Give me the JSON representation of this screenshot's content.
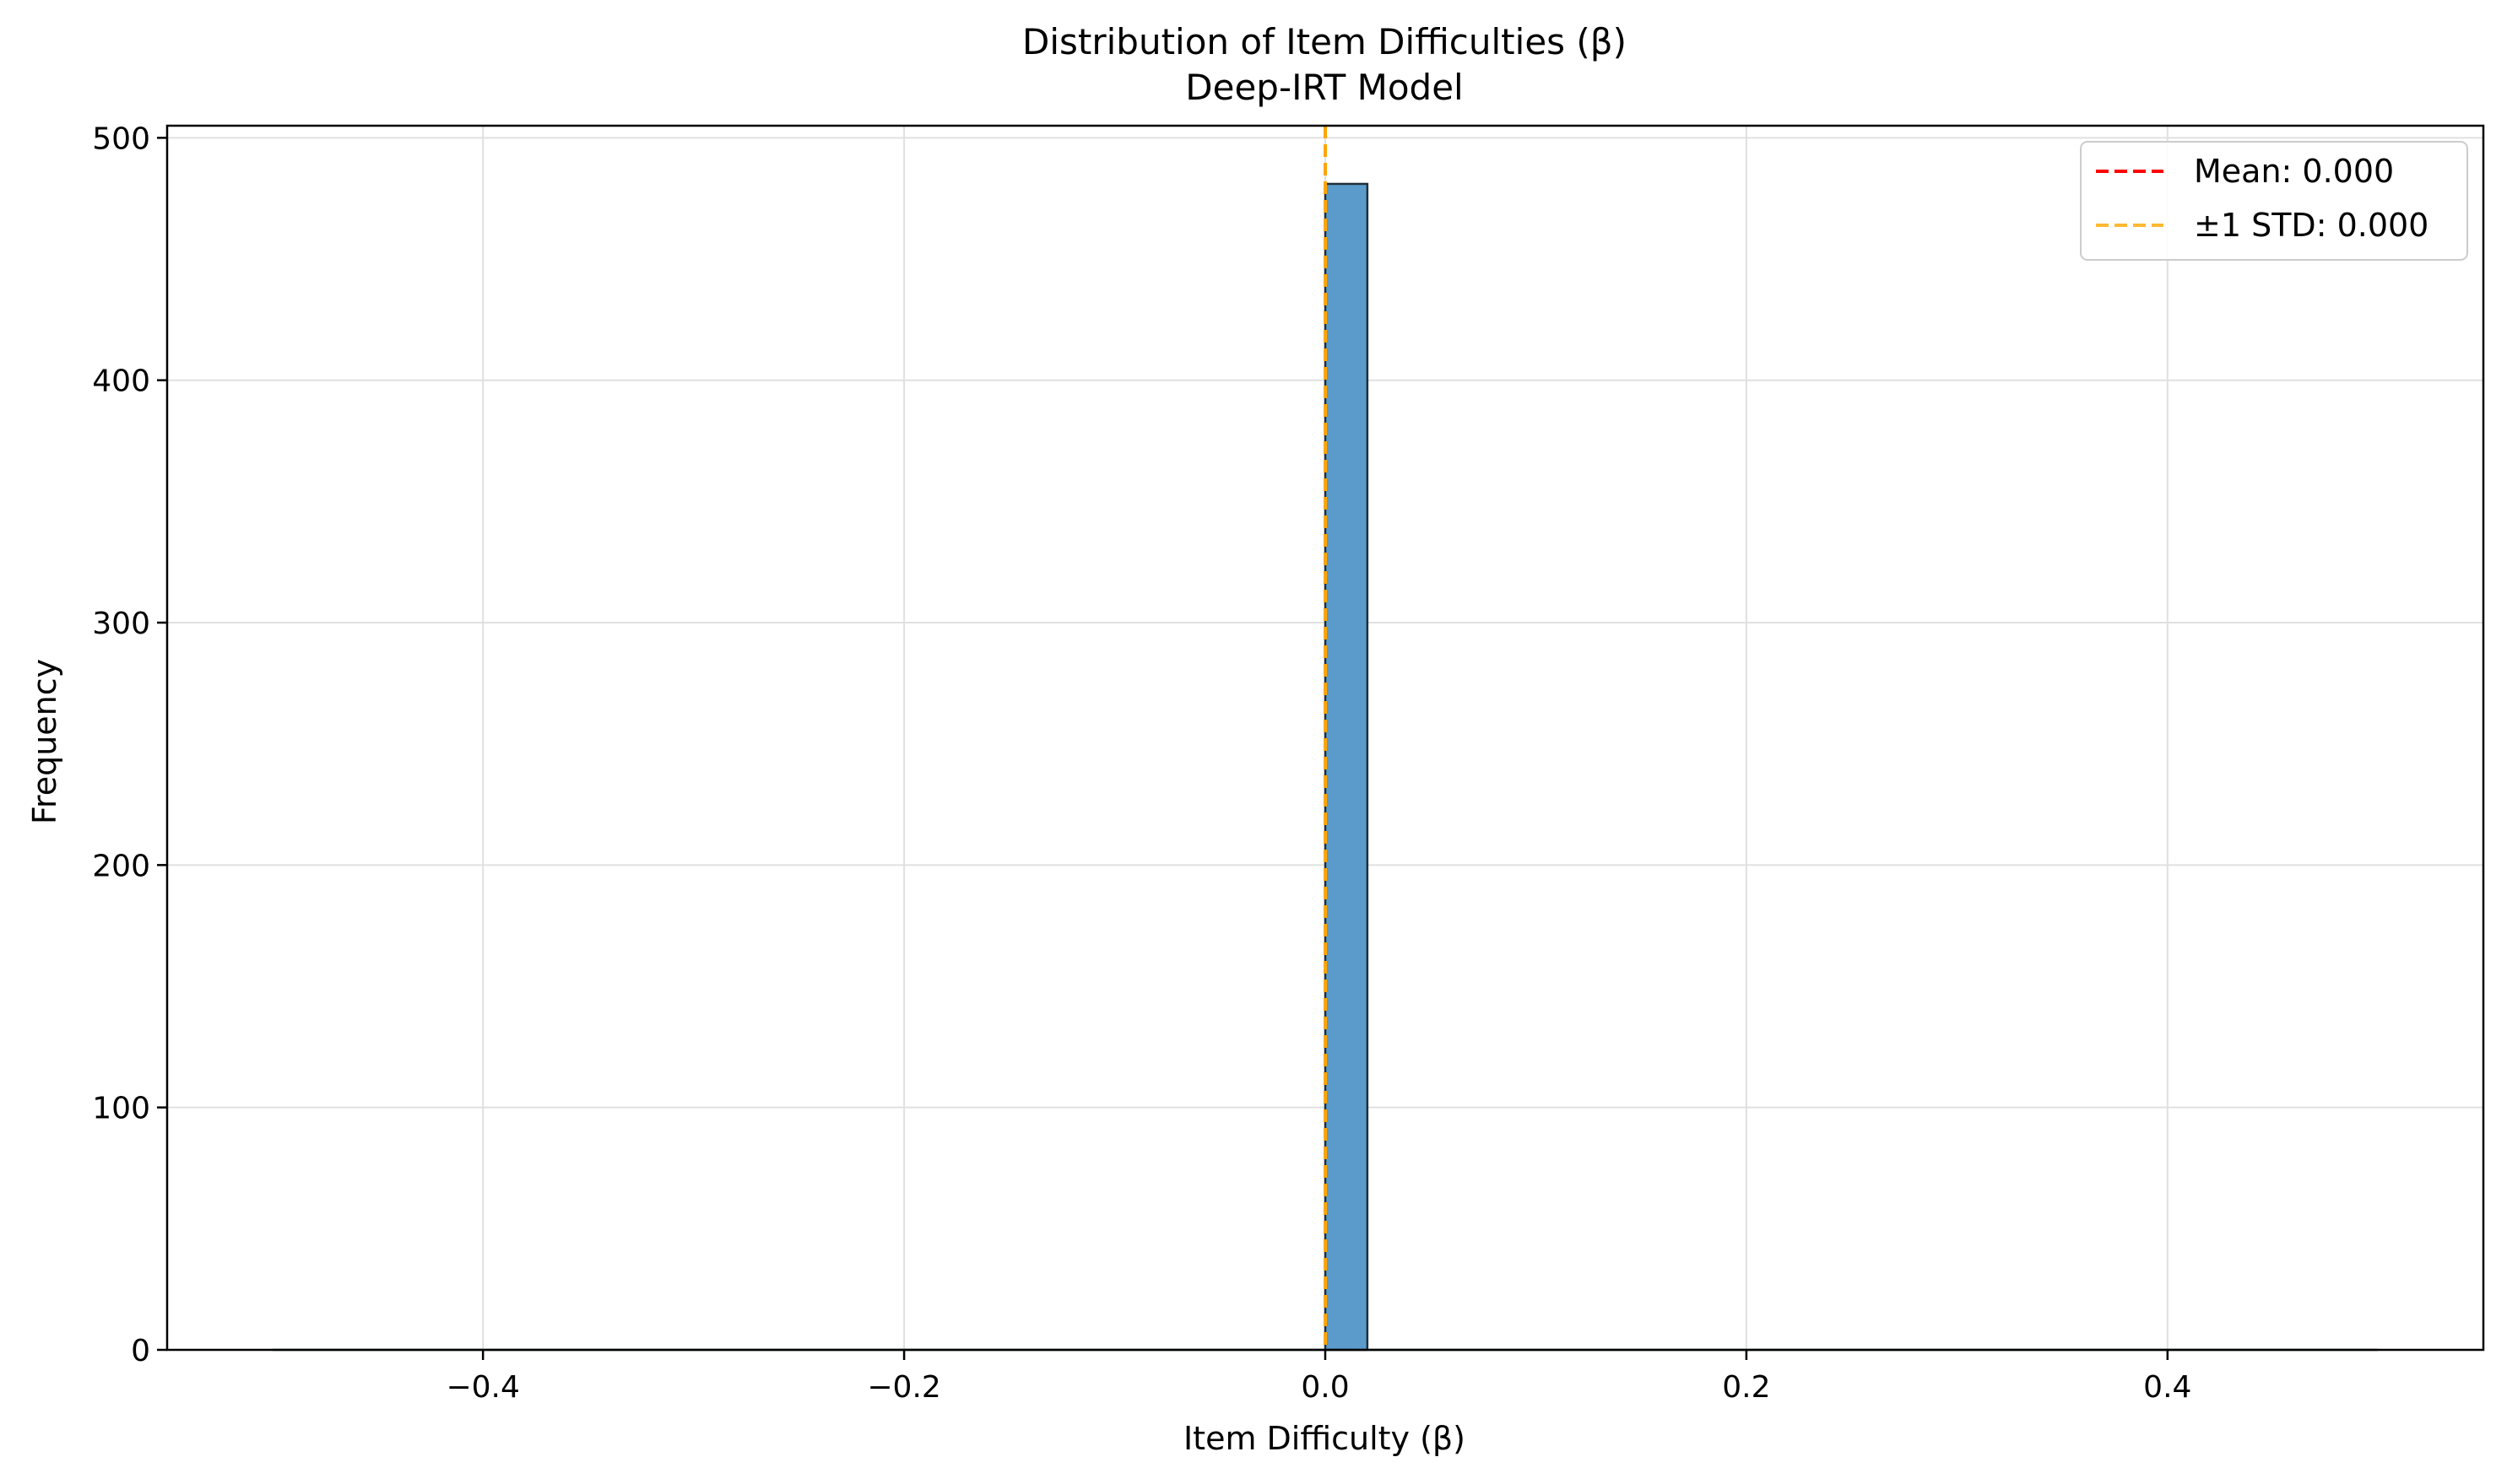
{
  "chart_data": {
    "type": "bar",
    "title": "Distribution of Item Difficulties (β)",
    "subtitle": "Deep-IRT Model",
    "xlabel": "Item Difficulty (β)",
    "ylabel": "Frequency",
    "xlim": [
      -0.55,
      0.55
    ],
    "ylim": [
      0,
      505
    ],
    "xticks": [
      -0.4,
      -0.2,
      0.0,
      0.2,
      0.4
    ],
    "xtick_labels": [
      "−0.4",
      "−0.2",
      "0.0",
      "0.2",
      "0.4"
    ],
    "yticks": [
      0,
      100,
      200,
      300,
      400,
      500
    ],
    "ytick_labels": [
      "0",
      "100",
      "200",
      "300",
      "400",
      "500"
    ],
    "grid": true,
    "bin_range": [
      -0.5,
      0.5
    ],
    "bin_count": 50,
    "bins": [
      {
        "x0": 0.0,
        "x1": 0.02,
        "value": 481
      }
    ],
    "reference_lines": [
      {
        "x": 0.0,
        "style": "dashed",
        "color": "#ff0000",
        "label": "Mean: 0.000"
      },
      {
        "x": 0.0,
        "style": "dashed",
        "color": "#ffa500",
        "label": "±1 STD: 0.000"
      },
      {
        "x": 0.0,
        "style": "dashed",
        "color": "#ffa500",
        "label": ""
      }
    ],
    "legend_position": "top-right",
    "colors": {
      "bar_fill": "#5b9bcb",
      "bar_edge": "#1f2f3a",
      "mean_line": "#ff0000",
      "std_line": "#ffb833",
      "grid": "#e0e0e0"
    }
  }
}
